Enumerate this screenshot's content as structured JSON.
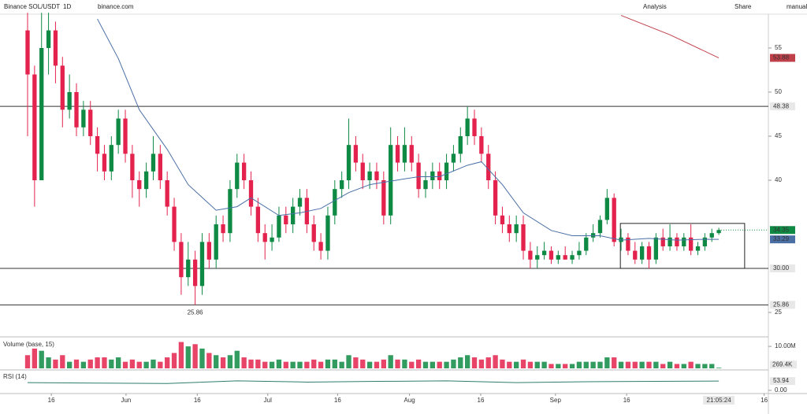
{
  "toolbar": {
    "symbol": "Binance SOL/USDT",
    "interval": "1D",
    "site": "binance.com",
    "analysis": "Analysis",
    "share": "Share",
    "user": "manual"
  },
  "chart_data": {
    "type": "candlestick",
    "ohlc": [
      [
        57,
        59,
        45,
        52
      ],
      [
        52,
        53,
        37,
        40
      ],
      [
        40,
        59,
        40,
        55
      ],
      [
        55,
        59,
        52,
        57
      ],
      [
        57,
        58,
        51,
        53
      ],
      [
        53,
        54,
        46,
        48
      ],
      [
        48,
        52,
        47,
        50
      ],
      [
        50,
        51,
        45,
        46
      ],
      [
        46,
        49,
        45,
        48
      ],
      [
        48,
        49,
        44,
        45
      ],
      [
        45,
        46,
        41,
        43
      ],
      [
        43,
        44,
        40,
        41
      ],
      [
        41,
        45,
        40,
        44
      ],
      [
        44,
        48,
        43,
        47
      ],
      [
        47,
        48,
        42,
        43
      ],
      [
        43,
        44,
        38,
        40
      ],
      [
        40,
        41,
        37,
        39
      ],
      [
        39,
        42,
        38,
        41
      ],
      [
        41,
        45,
        40,
        43
      ],
      [
        43,
        44,
        39,
        40
      ],
      [
        40,
        41,
        36,
        37
      ],
      [
        37,
        38,
        32,
        33
      ],
      [
        33,
        34,
        27,
        29
      ],
      [
        29,
        33,
        28,
        31
      ],
      [
        31,
        32,
        25.86,
        28
      ],
      [
        28,
        34,
        27,
        33
      ],
      [
        33,
        34,
        30,
        31
      ],
      [
        31,
        36,
        30,
        35
      ],
      [
        35,
        36,
        33,
        34
      ],
      [
        34,
        40,
        33,
        39
      ],
      [
        39,
        43,
        38,
        42
      ],
      [
        42,
        43,
        39,
        40
      ],
      [
        40,
        41,
        36,
        37
      ],
      [
        37,
        38,
        33,
        34
      ],
      [
        34,
        35,
        31,
        33
      ],
      [
        33,
        35,
        32,
        33.5
      ],
      [
        33.5,
        37,
        33,
        36
      ],
      [
        36,
        37,
        34,
        35
      ],
      [
        35,
        38,
        34,
        37
      ],
      [
        37,
        39,
        36,
        38
      ],
      [
        38,
        39,
        34,
        35
      ],
      [
        35,
        36,
        32,
        33
      ],
      [
        33,
        34,
        31,
        32
      ],
      [
        32,
        37,
        31,
        36
      ],
      [
        36,
        40,
        35,
        39
      ],
      [
        39,
        41,
        38,
        40
      ],
      [
        40,
        47,
        39,
        44
      ],
      [
        44,
        45,
        41,
        42
      ],
      [
        42,
        43,
        39,
        40
      ],
      [
        40,
        42,
        39,
        41
      ],
      [
        41,
        42,
        39,
        40
      ],
      [
        40,
        41,
        35,
        36
      ],
      [
        36,
        46,
        35,
        44
      ],
      [
        44,
        45,
        41,
        42
      ],
      [
        42,
        46,
        41,
        44
      ],
      [
        44,
        45,
        41,
        42
      ],
      [
        42,
        43,
        38,
        39
      ],
      [
        39,
        41,
        38,
        40
      ],
      [
        40,
        42,
        39,
        41
      ],
      [
        41,
        42,
        39,
        40
      ],
      [
        40,
        43,
        39,
        42
      ],
      [
        42,
        44,
        41,
        43
      ],
      [
        43,
        46,
        42,
        45
      ],
      [
        45,
        48.38,
        44,
        47
      ],
      [
        47,
        48,
        44,
        45
      ],
      [
        45,
        46,
        42,
        43
      ],
      [
        43,
        44,
        39,
        40
      ],
      [
        40,
        41,
        35,
        36
      ],
      [
        36,
        37,
        34,
        35
      ],
      [
        35,
        36,
        33,
        34
      ],
      [
        34,
        36,
        33,
        35
      ],
      [
        35,
        36,
        31,
        32
      ],
      [
        32,
        33,
        30,
        31
      ],
      [
        31,
        32.5,
        30,
        31.5
      ],
      [
        31.5,
        33,
        31,
        32
      ],
      [
        32,
        32.5,
        30.5,
        31
      ],
      [
        31,
        32,
        30.5,
        31.5
      ],
      [
        31.5,
        32.5,
        31,
        31
      ],
      [
        31,
        32,
        30.5,
        31.5
      ],
      [
        31.5,
        33,
        31,
        32
      ],
      [
        32,
        34,
        31.5,
        33.5
      ],
      [
        33.5,
        35,
        33,
        34
      ],
      [
        34,
        36,
        33.5,
        35.5
      ],
      [
        35.5,
        39,
        35,
        38
      ],
      [
        38,
        38.5,
        32.5,
        33
      ],
      [
        33,
        34.5,
        32,
        33.5
      ],
      [
        33.5,
        34,
        31.5,
        32
      ],
      [
        32,
        33,
        30.5,
        31
      ],
      [
        31,
        33,
        30.5,
        32.5
      ],
      [
        32.5,
        33,
        30,
        31
      ],
      [
        31,
        34,
        30.5,
        33.5
      ],
      [
        33.5,
        34.5,
        32,
        32.5
      ],
      [
        32.5,
        35,
        32,
        33.5
      ],
      [
        33.5,
        34,
        32,
        32.5
      ],
      [
        32.5,
        34,
        32,
        33.5
      ],
      [
        33.5,
        35,
        31.5,
        32
      ],
      [
        32,
        33,
        31.5,
        32.5
      ],
      [
        32.5,
        34,
        32,
        33.5
      ],
      [
        33.5,
        34.5,
        33,
        34
      ],
      [
        34,
        34.6,
        33.8,
        34.35
      ]
    ],
    "up_color": "#0e8a44",
    "down_color": "#e3234d",
    "xlim": [
      -3.95,
      106.1
    ],
    "xticks": [
      {
        "value": 3.4,
        "label": "16"
      },
      {
        "value": 14.1,
        "label": "Jun"
      },
      {
        "value": 24.3,
        "label": "16"
      },
      {
        "value": 34.4,
        "label": "Jul"
      },
      {
        "value": 44.4,
        "label": "16"
      },
      {
        "value": 54.7,
        "label": "Aug"
      },
      {
        "value": 64.9,
        "label": "16"
      },
      {
        "value": 75.6,
        "label": "Sep"
      },
      {
        "value": 85.8,
        "label": "16"
      },
      {
        "value": 105.5,
        "label": "16"
      }
    ],
    "time_label": "21:05:24",
    "ylim": [
      22.23,
      58.84
    ],
    "yticks": [
      25,
      40,
      45,
      50,
      55
    ],
    "hlines": [
      {
        "value": 48.38,
        "label": "48.38"
      },
      {
        "value": 30,
        "label": "30.00"
      },
      {
        "value": 25.86,
        "label": "25.86"
      }
    ],
    "annotation": {
      "text": "25.86",
      "index": 24
    },
    "box": {
      "x": [
        84.9,
        102.7
      ],
      "y": [
        30,
        35.1
      ]
    },
    "lines": [
      {
        "color": "#4a6fa5",
        "x": [
          10,
          13,
          16,
          20,
          23,
          27,
          30,
          32,
          36,
          39,
          42,
          46,
          49,
          52,
          56,
          59,
          63,
          65,
          68,
          71,
          75,
          78,
          82,
          85,
          89,
          93,
          97,
          99
        ],
        "values": [
          58.3,
          53.8,
          48,
          43.5,
          39.5,
          36.6,
          37,
          38,
          36,
          36.3,
          36.8,
          38.6,
          39.5,
          39.9,
          40.4,
          40.4,
          41.7,
          42.1,
          39.5,
          36.3,
          34.3,
          33.7,
          33.7,
          33.2,
          33.4,
          33.2,
          33.3,
          33.29
        ]
      },
      {
        "color": "#c0404a",
        "x": [
          85,
          92,
          99
        ],
        "values": [
          58.7,
          56.5,
          53.88
        ]
      }
    ],
    "volume": {
      "title": "Volume (base, 15)",
      "values": [
        6000000.0,
        9000000.0,
        8000000.0,
        5000000.0,
        4000000.0,
        6000000.0,
        3000000.0,
        4000000.0,
        3000000.0,
        4000000.0,
        5000000.0,
        5000000.0,
        4000000.0,
        5000000.0,
        3000000.0,
        4000000.0,
        3000000.0,
        3000000.0,
        4000000.0,
        3000000.0,
        5000000.0,
        7000000.0,
        12000000.0,
        10000000.0,
        11000000.0,
        9000000.0,
        7000000.0,
        6000000.0,
        5000000.0,
        6000000.0,
        8000000.0,
        5000000.0,
        4000000.0,
        4000000.0,
        3000000.0,
        3000000.0,
        4000000.0,
        3000000.0,
        3000000.0,
        3000000.0,
        3000000.0,
        4000000.0,
        3000000.0,
        4000000.0,
        4000000.0,
        3000000.0,
        6000000.0,
        5000000.0,
        4000000.0,
        3000000.0,
        3000000.0,
        4000000.0,
        6000000.0,
        4000000.0,
        4000000.0,
        3000000.0,
        4000000.0,
        3000000.0,
        3000000.0,
        3000000.0,
        3000000.0,
        4000000.0,
        5000000.0,
        6000000.0,
        5000000.0,
        4000000.0,
        5000000.0,
        6000000.0,
        4000000.0,
        3000000.0,
        3000000.0,
        4000000.0,
        3000000.0,
        3000000.0,
        3000000.0,
        2000000.0,
        2000000.0,
        2000000.0,
        2000000.0,
        3000000.0,
        3000000.0,
        3000000.0,
        3000000.0,
        5000000.0,
        5000000.0,
        3000000.0,
        3000000.0,
        3000000.0,
        3000000.0,
        3000000.0,
        3000000.0,
        2000000.0,
        3000000.0,
        2000000.0,
        2000000.0,
        3000000.0,
        2000000.0,
        2000000.0,
        2000000.0,
        269400
      ],
      "value_labels": {
        "99": "269.4K"
      },
      "ylim": [
        0,
        12900000
      ],
      "yticks": [
        {
          "value": 10000000,
          "label": "10.00M"
        }
      ]
    },
    "rsi": {
      "title": "RSI (14)",
      "color": "#2e7d6e",
      "x": [
        0,
        10,
        20,
        30,
        40,
        50,
        60,
        70,
        80,
        90,
        99
      ],
      "values": [
        45,
        42,
        40,
        55,
        48,
        52,
        55,
        45,
        50,
        52,
        53.94
      ],
      "ylim": [
        0,
        100
      ],
      "yticks": [
        {
          "value": 0,
          "label": "0.00"
        }
      ]
    }
  }
}
